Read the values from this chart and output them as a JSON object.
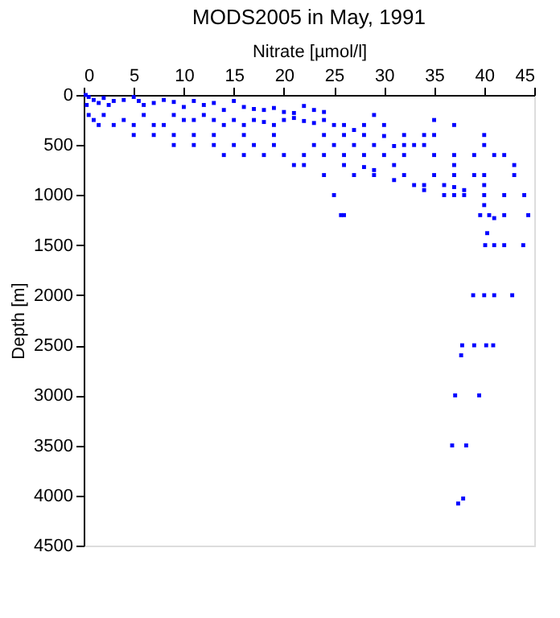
{
  "chart_data": {
    "type": "scatter",
    "title": "MODS2005 in May, 1991",
    "xlabel": "Nitrate [µmol/l]",
    "ylabel": "Depth [m]",
    "x": [
      0.2,
      0.5,
      1,
      0.3,
      1.5,
      2,
      2.5,
      3,
      4,
      5,
      5.5,
      6,
      7,
      8,
      9,
      10,
      11,
      12,
      13,
      15,
      14,
      16,
      17,
      18,
      19,
      20,
      21,
      22,
      23,
      24,
      0.5,
      1,
      1.5,
      2,
      3,
      4,
      5,
      6,
      7,
      8,
      9,
      10,
      11,
      12,
      13,
      14,
      15,
      16,
      17,
      18,
      19,
      20,
      21,
      22,
      23,
      24,
      25,
      26,
      27,
      28,
      29,
      30,
      35,
      37,
      5,
      7,
      9,
      11,
      13,
      16,
      19,
      24,
      26,
      28,
      30,
      32,
      34,
      35,
      40,
      9,
      11,
      13,
      15,
      17,
      19,
      23,
      25,
      27,
      29,
      31,
      32,
      33,
      34,
      40,
      14,
      16,
      18,
      20,
      22,
      24,
      26,
      28,
      30,
      32,
      35,
      37,
      39,
      41,
      42,
      21,
      22,
      26,
      28,
      29,
      31,
      43,
      37,
      24,
      27,
      29,
      31,
      32,
      35,
      37,
      39,
      40,
      43,
      33,
      34,
      36,
      37,
      38,
      34,
      40,
      25,
      36,
      37,
      38,
      40,
      42,
      44,
      40,
      25.7,
      26,
      39.6,
      40.5,
      41,
      42,
      44.4,
      40.3,
      40.1,
      41,
      42,
      43.9,
      38.9,
      40,
      41,
      42.8,
      37.8,
      39,
      40.2,
      40.9,
      37.7,
      37.1,
      39.5,
      36.8,
      38.2,
      37.9,
      37.4
    ],
    "series": [
      {
        "color": "#0000ff",
        "values": [
          0,
          20,
          50,
          100,
          80,
          30,
          100,
          60,
          50,
          20,
          60,
          100,
          80,
          50,
          70,
          120,
          60,
          100,
          80,
          60,
          150,
          120,
          140,
          150,
          130,
          170,
          180,
          110,
          150,
          170,
          200,
          250,
          300,
          200,
          300,
          250,
          300,
          200,
          300,
          300,
          200,
          250,
          250,
          200,
          250,
          300,
          250,
          300,
          250,
          270,
          300,
          250,
          230,
          260,
          280,
          250,
          300,
          300,
          350,
          300,
          200,
          300,
          250,
          300,
          400,
          400,
          400,
          400,
          400,
          400,
          400,
          400,
          400,
          400,
          410,
          400,
          400,
          400,
          400,
          500,
          500,
          500,
          500,
          500,
          500,
          500,
          500,
          500,
          500,
          510,
          500,
          500,
          500,
          500,
          600,
          600,
          600,
          600,
          600,
          600,
          600,
          600,
          600,
          600,
          600,
          600,
          600,
          600,
          600,
          700,
          700,
          700,
          720,
          750,
          700,
          700,
          700,
          800,
          800,
          800,
          850,
          800,
          800,
          800,
          800,
          800,
          800,
          900,
          900,
          900,
          920,
          950,
          950,
          900,
          1000,
          1000,
          1000,
          1000,
          1000,
          1000,
          1000,
          1100,
          1200,
          1200,
          1200,
          1200,
          1230,
          1200,
          1200,
          1380,
          1500,
          1500,
          1500,
          1500,
          2000,
          2000,
          2000,
          2000,
          2500,
          2500,
          2500,
          2500,
          2600,
          3000,
          3000,
          3500,
          3500,
          4030,
          4080
        ]
      }
    ],
    "xlim": [
      0,
      45
    ],
    "xticks": [
      0,
      5,
      10,
      15,
      20,
      25,
      30,
      35,
      40,
      45
    ],
    "ylim": [
      4500,
      0
    ],
    "yticks": [
      0,
      500,
      1000,
      1500,
      2000,
      2500,
      3000,
      3500,
      4000,
      4500
    ],
    "marker": "square",
    "grid": false,
    "legend": false
  }
}
